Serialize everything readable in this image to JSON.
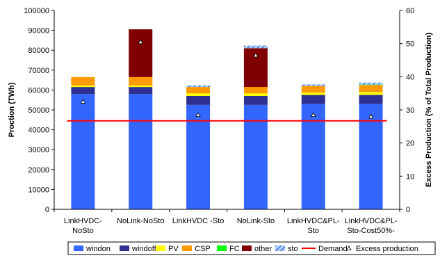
{
  "chart_data": {
    "type": "bar",
    "stacked": true,
    "categories": [
      [
        "LinkHVDC-",
        "NoSto"
      ],
      [
        "NoLink-NoSto"
      ],
      [
        "LinkHVDC -Sto"
      ],
      [
        "NoLink-Sto"
      ],
      [
        "LinkHVDC&PL-",
        "Sto"
      ],
      [
        "LinkHVDC&PL-",
        "Sto-Cost50%-"
      ]
    ],
    "ylabel": "Proction (TWh)",
    "y2label": "Excess Production (% of Total Production)",
    "ylim": [
      0,
      100000
    ],
    "y2lim": [
      0,
      60
    ],
    "yticks": [
      "0",
      "10000",
      "20000",
      "30000",
      "40000",
      "50000",
      "60000",
      "70000",
      "80000",
      "90000",
      "100000"
    ],
    "y2ticks": [
      "0",
      "10",
      "20",
      "30",
      "40",
      "50",
      "60"
    ],
    "series": [
      {
        "name": "windon",
        "color": "#3366ff",
        "values": [
          58000,
          58000,
          52500,
          52500,
          53000,
          53000
        ]
      },
      {
        "name": "windoff",
        "color": "#2e3192",
        "values": [
          3500,
          3500,
          4500,
          4500,
          4500,
          4500
        ]
      },
      {
        "name": "PV",
        "color": "#ffff00",
        "values": [
          800,
          800,
          1300,
          1300,
          1200,
          1500
        ]
      },
      {
        "name": "CSP",
        "color": "#ff9900",
        "values": [
          4200,
          4200,
          3200,
          3200,
          3300,
          3500
        ]
      },
      {
        "name": "FC",
        "color": "#00ff00",
        "values": [
          0,
          0,
          0,
          0,
          0,
          200
        ]
      },
      {
        "name": "other",
        "color": "#800000",
        "values": [
          0,
          24000,
          0,
          19500,
          0,
          0
        ]
      },
      {
        "name": "sto",
        "color": "#99ccff",
        "pattern": "hatch",
        "values": [
          0,
          0,
          800,
          1300,
          800,
          1000
        ]
      }
    ],
    "demand": {
      "name": "Demand",
      "color": "#ff0000",
      "value": 44500
    },
    "excess": {
      "name": "Excess production",
      "values": [
        32.5,
        50.5,
        28.5,
        46.5,
        28.5,
        28.0
      ]
    },
    "legend_position": "bottom",
    "grid": false
  }
}
